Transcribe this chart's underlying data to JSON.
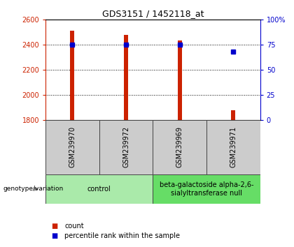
{
  "title": "GDS3151 / 1452118_at",
  "samples": [
    "GSM239970",
    "GSM239972",
    "GSM239969",
    "GSM239971"
  ],
  "counts": [
    2515,
    2480,
    2435,
    1875
  ],
  "percentile_ranks": [
    75,
    75,
    75,
    68
  ],
  "ylim_left": [
    1800,
    2600
  ],
  "ylim_right": [
    0,
    100
  ],
  "yticks_left": [
    1800,
    2000,
    2200,
    2400,
    2600
  ],
  "yticks_right": [
    0,
    25,
    50,
    75,
    100
  ],
  "bar_color": "#cc2200",
  "dot_color": "#0000cc",
  "bar_width": 0.08,
  "groups": [
    {
      "label": "control",
      "indices": [
        0,
        1
      ],
      "color": "#aaeaaa"
    },
    {
      "label": "beta-galactoside alpha-2,6-\nsialyltransferase null",
      "indices": [
        2,
        3
      ],
      "color": "#66dd66"
    }
  ],
  "group_label_prefix": "genotype/variation",
  "legend_count_label": "count",
  "legend_percentile_label": "percentile rank within the sample",
  "left_tick_color": "#cc2200",
  "right_tick_color": "#0000cc",
  "sample_box_color": "#cccccc",
  "sample_box_edge": "#444444",
  "title_fontsize": 9,
  "tick_fontsize": 7,
  "sample_fontsize": 7,
  "group_fontsize": 7,
  "legend_fontsize": 7
}
